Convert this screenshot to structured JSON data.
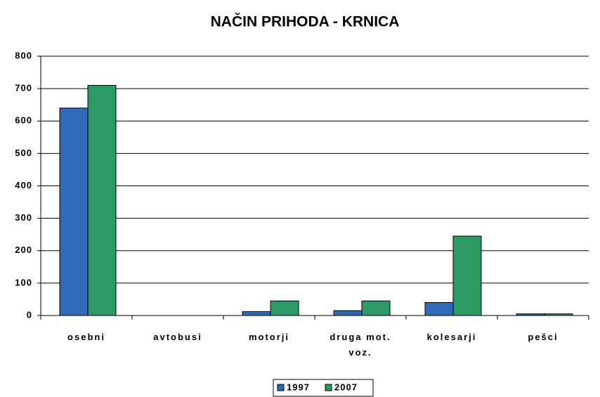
{
  "chart_data": {
    "type": "bar",
    "title": "NAČIN PRIHODA - KRNICA",
    "categories": [
      "osebni",
      "avtobusi",
      "motorji",
      "druga mot. voz.",
      "kolesarji",
      "pešci"
    ],
    "series": [
      {
        "name": "1997",
        "color": "#2f6ab8",
        "values": [
          640,
          0,
          12,
          15,
          40,
          5
        ]
      },
      {
        "name": "2007",
        "color": "#2e9a63",
        "values": [
          710,
          0,
          45,
          45,
          245,
          5
        ]
      }
    ],
    "ylim": [
      0,
      800
    ],
    "yticks": [
      0,
      100,
      200,
      300,
      400,
      500,
      600,
      700,
      800
    ],
    "grid": true
  }
}
